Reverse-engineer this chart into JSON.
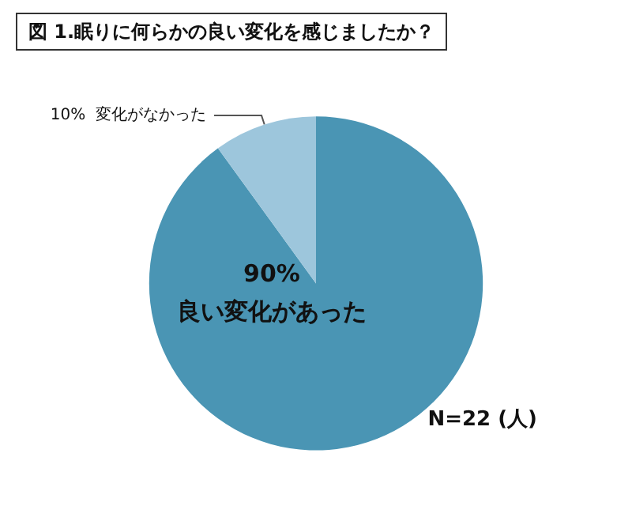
{
  "chart_data": {
    "type": "pie",
    "title": "図 1.眠りに何らかの良い変化を感じましたか？",
    "categories": [
      "良い変化があった",
      "変化がなかった"
    ],
    "values": [
      90,
      10
    ],
    "value_labels": [
      "90%",
      "10%"
    ],
    "colors": [
      "#4a95b4",
      "#9dc6dc"
    ],
    "annotations": [
      "N=22 (人)"
    ],
    "legend": false
  }
}
